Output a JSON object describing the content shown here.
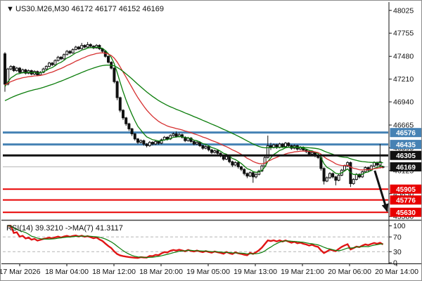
{
  "window": {
    "title": "US30.M26,M30  46172 46177 46152 46169",
    "dropdown_glyph": "▼"
  },
  "colors": {
    "background": "#ffffff",
    "border": "#8c8c8c",
    "axis_text": "#111111",
    "candle_outline": "#111111",
    "candle_bull_fill": "#ffffff",
    "candle_bear_fill": "#111111",
    "blue_level": "#4682B4",
    "red_level": "#e80000",
    "black_level": "#111111",
    "current_price_line": "#b8b8b8",
    "ma_green": "#0b7d0b",
    "ma_red": "#d63030",
    "rsi_line": "#e01515",
    "rsi_ma_line": "#0b7d0b",
    "rsi_grid": "#b5b5b5"
  },
  "chart_data": {
    "type": "candlestick",
    "symbol": "US30.M26",
    "timeframe": "M30",
    "current_bar_ohlc": {
      "open": 46172,
      "high": 46177,
      "low": 46152,
      "close": 46169
    },
    "price_axis_ticks": [
      48025,
      47755,
      47480,
      47210,
      46940,
      46665,
      46395,
      46125,
      45850,
      45580
    ],
    "time_labels": [
      "17 Mar 2026",
      "18 Mar 04:00",
      "18 Mar 12:00",
      "18 Mar 20:00",
      "19 Mar 05:00",
      "19 Mar 13:00",
      "19 Mar 21:00",
      "20 Mar 06:00",
      "20 Mar 14:00"
    ],
    "hlines": [
      {
        "price": 46576,
        "color": "#4682B4",
        "width": 3,
        "z": "under",
        "name": "resistance-1"
      },
      {
        "price": 46435,
        "color": "#4682B4",
        "width": 3,
        "z": "under",
        "name": "resistance-2"
      },
      {
        "price": 46305,
        "color": "#111111",
        "width": 3,
        "z": "over",
        "name": "pivot-black"
      },
      {
        "price": 46169,
        "color": "#b8b8b8",
        "width": 1,
        "z": "under",
        "name": "current-price"
      },
      {
        "price": 45905,
        "color": "#e80000",
        "width": 2,
        "z": "under",
        "name": "support-1"
      },
      {
        "price": 45776,
        "color": "#e80000",
        "width": 2,
        "z": "under",
        "name": "support-2"
      },
      {
        "price": 45630,
        "color": "#e80000",
        "width": 2,
        "z": "under",
        "name": "support-3"
      }
    ],
    "price_badges": [
      {
        "label": "46576",
        "price": 46576,
        "bg": "#4682B4"
      },
      {
        "label": "46435",
        "price": 46435,
        "bg": "#4682B4"
      },
      {
        "label": "46305",
        "price": 46305,
        "bg": "#111111"
      },
      {
        "label": "46169",
        "price": 46169,
        "bg": "#111111"
      },
      {
        "label": "45905",
        "price": 45905,
        "bg": "#e80000"
      },
      {
        "label": "45776",
        "price": 45776,
        "bg": "#e80000"
      },
      {
        "label": "45630",
        "price": 45630,
        "bg": "#e80000"
      }
    ],
    "arrow": {
      "from": {
        "bar": 125.2,
        "price": 46124
      },
      "to": {
        "bar": 129.4,
        "price": 45645
      },
      "color": "#111111",
      "width": 3
    },
    "overlays": [
      {
        "name": "ma-fast-green",
        "color": "#0b7d0b",
        "width": 1.3,
        "method": "ema",
        "k": 0.26,
        "seed": 47110
      },
      {
        "name": "ma-mid-red",
        "color": "#d63030",
        "width": 1.3,
        "method": "ema",
        "k": 0.1,
        "seed": 47140
      },
      {
        "name": "ma-slow-green",
        "color": "#0b7d0b",
        "width": 1.3,
        "method": "ema",
        "k": 0.045,
        "seed": 46945
      }
    ],
    "rsi": {
      "label": "RSI(14) 39.3210  ->MA(7) 41.3117",
      "period": 14,
      "value": 39.321,
      "ma_period": 7,
      "ma_value": 41.3117,
      "levels": [
        70,
        30
      ],
      "axis_ticks": [
        100,
        70,
        30,
        0
      ]
    },
    "candles": [
      [
        47510,
        47530,
        47060,
        47150
      ],
      [
        47150,
        47345,
        47135,
        47330
      ],
      [
        47330,
        47375,
        47315,
        47360
      ],
      [
        47360,
        47372,
        47295,
        47310
      ],
      [
        47310,
        47355,
        47298,
        47340
      ],
      [
        47340,
        47352,
        47275,
        47290
      ],
      [
        47290,
        47335,
        47278,
        47320
      ],
      [
        47320,
        47332,
        47265,
        47280
      ],
      [
        47280,
        47325,
        47268,
        47310
      ],
      [
        47310,
        47322,
        47255,
        47270
      ],
      [
        47270,
        47315,
        47258,
        47300
      ],
      [
        47300,
        47312,
        47245,
        47260
      ],
      [
        47260,
        47305,
        47248,
        47290
      ],
      [
        47290,
        47345,
        47280,
        47330
      ],
      [
        47330,
        47375,
        47320,
        47360
      ],
      [
        47360,
        47415,
        47350,
        47400
      ],
      [
        47400,
        47412,
        47365,
        47380
      ],
      [
        47380,
        47445,
        47372,
        47430
      ],
      [
        47430,
        47485,
        47420,
        47470
      ],
      [
        47470,
        47482,
        47435,
        47450
      ],
      [
        47450,
        47515,
        47442,
        47500
      ],
      [
        47500,
        47555,
        47492,
        47540
      ],
      [
        47540,
        47552,
        47505,
        47520
      ],
      [
        47520,
        47575,
        47512,
        47560
      ],
      [
        47560,
        47605,
        47552,
        47590
      ],
      [
        47590,
        47602,
        47555,
        47570
      ],
      [
        47570,
        47640,
        47562,
        47610
      ],
      [
        47610,
        47622,
        47575,
        47590
      ],
      [
        47590,
        47650,
        47582,
        47620
      ],
      [
        47620,
        47635,
        47585,
        47600
      ],
      [
        47600,
        47612,
        47565,
        47580
      ],
      [
        47580,
        47625,
        47572,
        47610
      ],
      [
        47610,
        47622,
        47555,
        47570
      ],
      [
        47570,
        47582,
        47525,
        47540
      ],
      [
        47540,
        47552,
        47465,
        47480
      ],
      [
        47480,
        47492,
        47395,
        47410
      ],
      [
        47410,
        47422,
        47325,
        47340
      ],
      [
        47340,
        47352,
        47160,
        47180
      ],
      [
        47180,
        47192,
        46960,
        46990
      ],
      [
        46990,
        47002,
        46815,
        46840
      ],
      [
        46840,
        46852,
        46725,
        46750
      ],
      [
        46750,
        46762,
        46655,
        46680
      ],
      [
        46680,
        46692,
        46595,
        46620
      ],
      [
        46620,
        46632,
        46535,
        46560
      ],
      [
        46560,
        46572,
        46480,
        46500
      ],
      [
        46500,
        46512,
        46440,
        46460
      ],
      [
        46460,
        46495,
        46448,
        46480
      ],
      [
        46480,
        46492,
        46420,
        46440
      ],
      [
        46440,
        46452,
        46400,
        46420
      ],
      [
        46420,
        46475,
        46408,
        46460
      ],
      [
        46460,
        46472,
        46422,
        46440
      ],
      [
        46440,
        46485,
        46428,
        46470
      ],
      [
        46470,
        46482,
        46432,
        46450
      ],
      [
        46450,
        46505,
        46438,
        46490
      ],
      [
        46490,
        46535,
        46478,
        46520
      ],
      [
        46520,
        46532,
        46482,
        46500
      ],
      [
        46500,
        46555,
        46488,
        46540
      ],
      [
        46540,
        46578,
        46528,
        46560
      ],
      [
        46560,
        46590,
        46518,
        46530
      ],
      [
        46530,
        46575,
        46518,
        46550
      ],
      [
        46550,
        46562,
        46505,
        46520
      ],
      [
        46520,
        46532,
        46462,
        46480
      ],
      [
        46480,
        46525,
        46468,
        46510
      ],
      [
        46510,
        46522,
        46455,
        46470
      ],
      [
        46470,
        46482,
        46425,
        46440
      ],
      [
        46440,
        46475,
        46428,
        46460
      ],
      [
        46460,
        46472,
        46405,
        46420
      ],
      [
        46420,
        46432,
        46372,
        46390
      ],
      [
        46390,
        46425,
        46378,
        46410
      ],
      [
        46410,
        46422,
        46352,
        46370
      ],
      [
        46370,
        46382,
        46322,
        46340
      ],
      [
        46340,
        46375,
        46328,
        46360
      ],
      [
        46360,
        46372,
        46312,
        46330
      ],
      [
        46330,
        46342,
        46282,
        46300
      ],
      [
        46300,
        46312,
        46242,
        46260
      ],
      [
        46260,
        46305,
        46248,
        46290
      ],
      [
        46290,
        46302,
        46212,
        46230
      ],
      [
        46230,
        46242,
        46168,
        46190
      ],
      [
        46190,
        46235,
        46178,
        46220
      ],
      [
        46220,
        46232,
        46148,
        46170
      ],
      [
        46170,
        46182,
        46118,
        46140
      ],
      [
        46140,
        46152,
        46068,
        46090
      ],
      [
        46090,
        46102,
        46035,
        46060
      ],
      [
        46060,
        46115,
        46048,
        46100
      ],
      [
        46100,
        46112,
        45980,
        46050
      ],
      [
        46050,
        46095,
        46032,
        46080
      ],
      [
        46080,
        46135,
        46068,
        46120
      ],
      [
        46120,
        46195,
        46108,
        46180
      ],
      [
        46180,
        46295,
        46168,
        46280
      ],
      [
        46280,
        46540,
        46268,
        46420
      ],
      [
        46420,
        46455,
        46368,
        46400
      ],
      [
        46400,
        46445,
        46388,
        46430
      ],
      [
        46430,
        46442,
        46382,
        46400
      ],
      [
        46400,
        46455,
        46388,
        46440
      ],
      [
        46440,
        46452,
        46392,
        46410
      ],
      [
        46410,
        46465,
        46398,
        46450
      ],
      [
        46450,
        46462,
        46402,
        46420
      ],
      [
        46420,
        46432,
        46372,
        46390
      ],
      [
        46390,
        46435,
        46378,
        46420
      ],
      [
        46420,
        46432,
        46362,
        46380
      ],
      [
        46380,
        46415,
        46368,
        46400
      ],
      [
        46400,
        46412,
        46352,
        46370
      ],
      [
        46370,
        46382,
        46332,
        46350
      ],
      [
        46350,
        46362,
        46302,
        46320
      ],
      [
        46320,
        46355,
        46308,
        46340
      ],
      [
        46340,
        46352,
        46282,
        46300
      ],
      [
        46300,
        46312,
        46262,
        46280
      ],
      [
        46280,
        46292,
        46125,
        46150
      ],
      [
        46150,
        46162,
        45960,
        46000
      ],
      [
        46000,
        46055,
        45988,
        46040
      ],
      [
        46040,
        46105,
        46028,
        46090
      ],
      [
        46090,
        46102,
        46032,
        46050
      ],
      [
        46050,
        46062,
        45950,
        46010
      ],
      [
        46010,
        46085,
        45998,
        46070
      ],
      [
        46070,
        46145,
        46058,
        46130
      ],
      [
        46130,
        46195,
        46118,
        46180
      ],
      [
        46180,
        46235,
        46168,
        46220
      ],
      [
        46220,
        46232,
        45930,
        45970
      ],
      [
        45970,
        46035,
        45958,
        46020
      ],
      [
        46020,
        46095,
        46008,
        46080
      ],
      [
        46080,
        46092,
        46032,
        46050
      ],
      [
        46050,
        46125,
        46038,
        46110
      ],
      [
        46110,
        46175,
        46098,
        46160
      ],
      [
        46160,
        46172,
        46112,
        46130
      ],
      [
        46130,
        46195,
        46118,
        46180
      ],
      [
        46180,
        46235,
        46168,
        46220
      ],
      [
        46220,
        46232,
        46172,
        46190
      ],
      [
        46190,
        46440,
        46150,
        46230
      ],
      [
        46172,
        46177,
        46152,
        46169
      ]
    ]
  }
}
